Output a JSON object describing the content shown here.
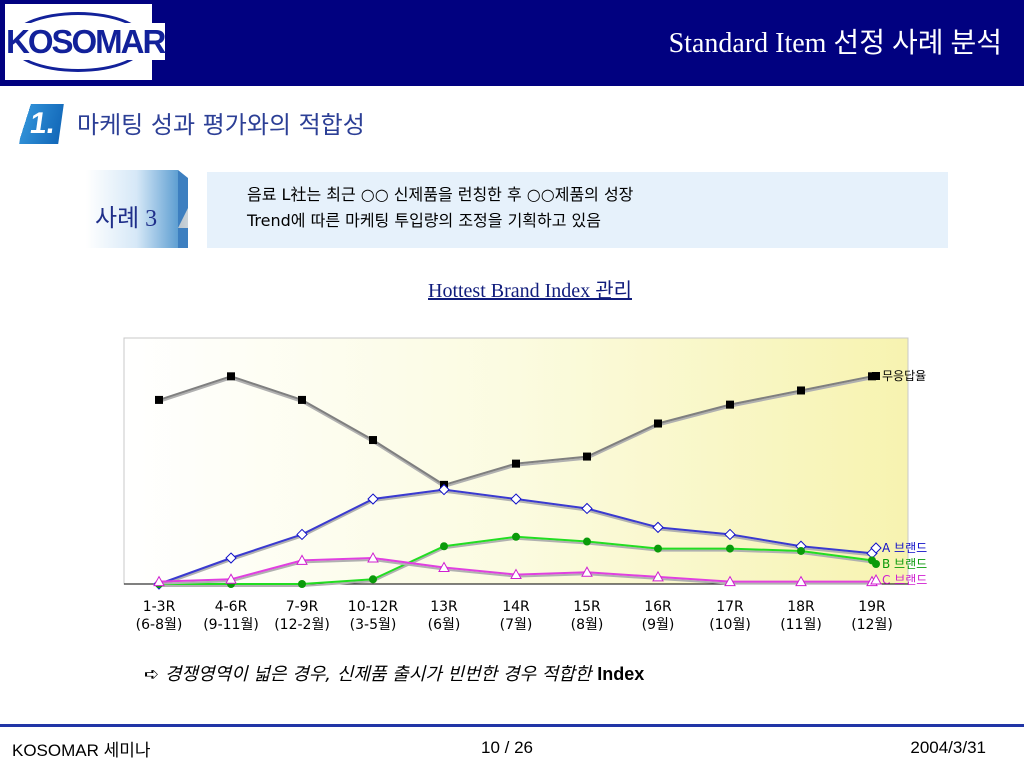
{
  "header": {
    "logo_text": "KOSOMAR",
    "title": "Standard Item 선정 사례 분석"
  },
  "section": {
    "number": "1.",
    "title": "마케팅 성과 평가와의 적합성"
  },
  "case": {
    "label": "사례 3",
    "desc_line1": "음료 L社는 최근 ○○ 신제품을 런칭한 후 ○○제품의 성장",
    "desc_line2": "Trend에 따른 마케팅 투입량의 조정을 기획하고 있음"
  },
  "chart_data": {
    "type": "line",
    "title": "Hottest Brand Index 관리",
    "categories": [
      [
        "1-3R",
        "(6-8월)"
      ],
      [
        "4-6R",
        "(9-11월)"
      ],
      [
        "7-9R",
        "(12-2월)"
      ],
      [
        "10-12R",
        "(3-5월)"
      ],
      [
        "13R",
        "(6월)"
      ],
      [
        "14R",
        "(7월)"
      ],
      [
        "15R",
        "(8월)"
      ],
      [
        "16R",
        "(9월)"
      ],
      [
        "17R",
        "(10월)"
      ],
      [
        "18R",
        "(11월)"
      ],
      [
        "19R",
        "(12월)"
      ]
    ],
    "ylim": [
      0,
      100
    ],
    "grid": false,
    "series": [
      {
        "name": "무응답율",
        "color": "#000000",
        "line_color": "#7f7f7f",
        "marker": "square",
        "values": [
          78,
          88,
          78,
          61,
          42,
          51,
          54,
          68,
          76,
          82,
          88
        ]
      },
      {
        "name": "A 브랜드",
        "color": "#1010c8",
        "line_color": "#3a3ad0",
        "marker": "diamond",
        "values": [
          0,
          11,
          21,
          36,
          40,
          36,
          32,
          24,
          21,
          16,
          13
        ]
      },
      {
        "name": "B 브랜드",
        "color": "#0a9a0a",
        "line_color": "#22dd22",
        "marker": "circle",
        "values": [
          0,
          0,
          0,
          2,
          16,
          20,
          18,
          15,
          15,
          14,
          10
        ]
      },
      {
        "name": "C 브랜드",
        "color": "#d01fd0",
        "line_color": "#e040e0",
        "marker": "triangle",
        "values": [
          1,
          2,
          10,
          11,
          7,
          4,
          5,
          3,
          1,
          1,
          1
        ]
      }
    ]
  },
  "note": {
    "arrow": "➪",
    "text": "경쟁영역이 넓은 경우, 신제품 출시가 빈번한 경우 적합한 ",
    "bold": "Index"
  },
  "footer": {
    "left": "KOSOMAR 세미나",
    "center": "10 / 26",
    "right": "2004/3/31"
  }
}
